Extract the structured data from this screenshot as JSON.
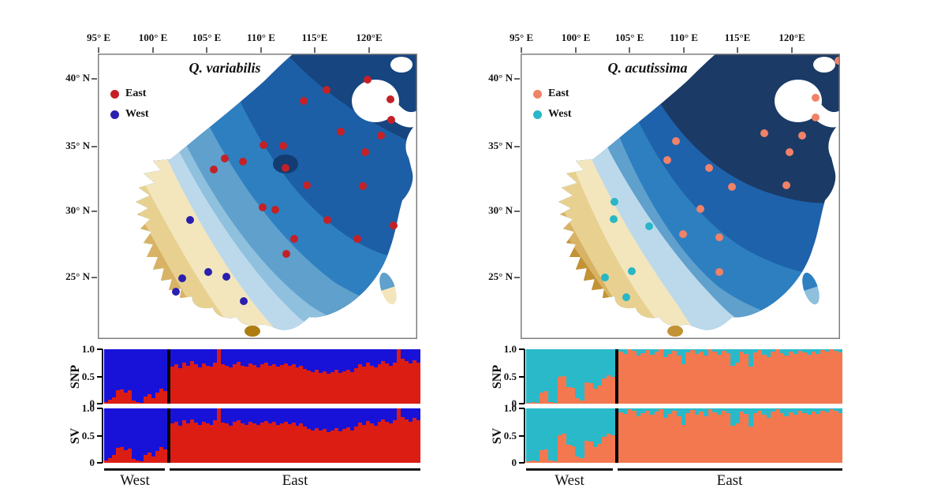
{
  "chart_data": [
    {
      "type": "scatter",
      "title": "Q. variabilis",
      "legend": [
        {
          "label": "East",
          "color": "#c42127"
        },
        {
          "label": "West",
          "color": "#2b1fae"
        }
      ],
      "map": {
        "east_color": "#c42127",
        "west_color": "#2b1fae",
        "frame_color": "#7f7f7f",
        "band_colors": [
          "#16457f",
          "#1c5fa6",
          "#2e7fc0",
          "#5fa0cd",
          "#8fc0de",
          "#bcd9ec",
          "#f3e6bd",
          "#e8d190",
          "#d8b365",
          "#c29234",
          "#ad7d12"
        ],
        "blob_color": "#123c72",
        "x_ticks": [
          {
            "label": "95° E",
            "x": 1
          },
          {
            "label": "100° E",
            "x": 70
          },
          {
            "label": "105° E",
            "x": 138
          },
          {
            "label": "110° E",
            "x": 207
          },
          {
            "label": "115°E",
            "x": 275
          },
          {
            "label": "120°E",
            "x": 344
          }
        ],
        "y_ticks": [
          {
            "label": "40° N",
            "y": 32
          },
          {
            "label": "35° N",
            "y": 118
          },
          {
            "label": "30° N",
            "y": 200
          },
          {
            "label": "25° N",
            "y": 284
          }
        ],
        "east_points": [
          [
            290,
            46
          ],
          [
            261,
            60
          ],
          [
            342,
            33
          ],
          [
            371,
            58
          ],
          [
            372,
            84
          ],
          [
            308,
            99
          ],
          [
            359,
            104
          ],
          [
            210,
            116
          ],
          [
            235,
            117
          ],
          [
            339,
            125
          ],
          [
            161,
            133
          ],
          [
            184,
            137
          ],
          [
            147,
            147
          ],
          [
            238,
            145
          ],
          [
            265,
            167
          ],
          [
            336,
            168
          ],
          [
            209,
            195
          ],
          [
            225,
            198
          ],
          [
            291,
            211
          ],
          [
            375,
            218
          ],
          [
            249,
            235
          ],
          [
            329,
            235
          ],
          [
            239,
            254
          ]
        ],
        "west_points": [
          [
            117,
            211
          ],
          [
            140,
            277
          ],
          [
            163,
            283
          ],
          [
            107,
            285
          ],
          [
            99,
            302
          ],
          [
            185,
            314
          ]
        ]
      },
      "admixture": {
        "type": "bar",
        "colors": {
          "east": "#dc1d14",
          "west": "#1812d9"
        },
        "y_ticks": [
          {
            "label": "1.0",
            "y": 0
          },
          {
            "label": "0.5",
            "y": 34.5
          },
          {
            "label": "0",
            "y": 69
          }
        ],
        "group_labels": [
          "West",
          "East"
        ],
        "rows": [
          {
            "label": "SNP",
            "west": [
              0.03,
              0.07,
              0.12,
              0.24,
              0.26,
              0.21,
              0.24,
              0.06,
              0.03,
              0.02,
              0.13,
              0.17,
              0.1,
              0.2,
              0.27,
              0.23
            ],
            "east": [
              0.68,
              0.72,
              0.65,
              0.75,
              0.7,
              0.78,
              0.72,
              0.66,
              0.74,
              0.7,
              0.68,
              0.76,
              1.0,
              0.72,
              0.7,
              0.66,
              0.73,
              0.77,
              0.7,
              0.68,
              0.74,
              0.71,
              0.67,
              0.72,
              0.75,
              0.7,
              0.73,
              0.68,
              0.71,
              0.74,
              0.69,
              0.72,
              0.66,
              0.7,
              0.64,
              0.61,
              0.58,
              0.62,
              0.57,
              0.6,
              0.55,
              0.58,
              0.62,
              0.56,
              0.6,
              0.63,
              0.58,
              0.65,
              0.72,
              0.68,
              0.75,
              0.7,
              0.66,
              0.73,
              0.78,
              0.74,
              0.7,
              0.76,
              1.0,
              0.82,
              0.78,
              0.74,
              0.8,
              0.76
            ]
          },
          {
            "label": "SV",
            "west": [
              0.05,
              0.09,
              0.14,
              0.27,
              0.29,
              0.23,
              0.26,
              0.07,
              0.04,
              0.03,
              0.15,
              0.19,
              0.12,
              0.22,
              0.29,
              0.25
            ],
            "east": [
              0.72,
              0.75,
              0.68,
              0.78,
              0.73,
              0.8,
              0.74,
              0.69,
              0.76,
              0.72,
              0.7,
              0.78,
              1.0,
              0.74,
              0.72,
              0.68,
              0.75,
              0.79,
              0.72,
              0.7,
              0.76,
              0.73,
              0.69,
              0.74,
              0.77,
              0.72,
              0.75,
              0.7,
              0.73,
              0.76,
              0.71,
              0.74,
              0.68,
              0.72,
              0.66,
              0.63,
              0.6,
              0.64,
              0.59,
              0.62,
              0.57,
              0.6,
              0.64,
              0.58,
              0.62,
              0.65,
              0.6,
              0.67,
              0.74,
              0.7,
              0.77,
              0.72,
              0.68,
              0.75,
              0.8,
              0.76,
              0.72,
              0.78,
              1.0,
              0.84,
              0.8,
              0.76,
              0.82,
              0.78
            ]
          }
        ]
      }
    },
    {
      "type": "scatter",
      "title": "Q. acutissima",
      "legend": [
        {
          "label": "East",
          "color": "#ef8268"
        },
        {
          "label": "West",
          "color": "#28b7c6"
        }
      ],
      "map": {
        "east_color": "#ef8268",
        "west_color": "#28b7c6",
        "frame_color": "#7f7f7f",
        "band_colors": [
          "#1b3a66",
          "#1e62ab",
          "#2e7fc0",
          "#5fa0cd",
          "#8fc0de",
          "#bcd9ec",
          "#f3e6bd",
          "#e8d190",
          "#d8b365",
          "#c29234",
          "#ad7d12"
        ],
        "x_ticks": [
          {
            "label": "95° E",
            "x": 1
          },
          {
            "label": "100° E",
            "x": 70
          },
          {
            "label": "105° E",
            "x": 138
          },
          {
            "label": "110° E",
            "x": 207
          },
          {
            "label": "115°E",
            "x": 275
          },
          {
            "label": "120°E",
            "x": 344
          }
        ],
        "y_ticks": [
          {
            "label": "40° N",
            "y": 32
          },
          {
            "label": "35° N",
            "y": 118
          },
          {
            "label": "30° N",
            "y": 200
          },
          {
            "label": "25° N",
            "y": 284
          }
        ],
        "east_points": [
          [
            403,
            9
          ],
          [
            374,
            56
          ],
          [
            374,
            81
          ],
          [
            309,
            101
          ],
          [
            357,
            104
          ],
          [
            197,
            111
          ],
          [
            186,
            135
          ],
          [
            239,
            145
          ],
          [
            341,
            125
          ],
          [
            268,
            169
          ],
          [
            337,
            167
          ],
          [
            228,
            197
          ],
          [
            206,
            229
          ],
          [
            252,
            233
          ],
          [
            252,
            277
          ]
        ],
        "west_points": [
          [
            119,
            188
          ],
          [
            118,
            210
          ],
          [
            163,
            219
          ],
          [
            141,
            276
          ],
          [
            107,
            284
          ],
          [
            134,
            309
          ]
        ]
      },
      "admixture": {
        "type": "bar",
        "colors": {
          "east": "#f4784f",
          "west": "#29b9c9"
        },
        "y_ticks": [
          {
            "label": "1.0",
            "y": 0
          },
          {
            "label": "0.5",
            "y": 34.5
          },
          {
            "label": "0",
            "y": 69
          }
        ],
        "group_labels": [
          "West",
          "East"
        ],
        "rows": [
          {
            "label": "SNP",
            "west": [
              0.02,
              0.03,
              0.02,
              0.21,
              0.23,
              0.03,
              0.02,
              0.49,
              0.51,
              0.31,
              0.29,
              0.1,
              0.06,
              0.39,
              0.37,
              0.27,
              0.33,
              0.46,
              0.52,
              0.49
            ],
            "east": [
              0.95,
              0.92,
              1.0,
              0.97,
              0.88,
              0.93,
              0.98,
              0.9,
              0.96,
              1.0,
              0.85,
              0.92,
              0.97,
              0.88,
              0.72,
              0.94,
              0.99,
              0.91,
              0.96,
              0.88,
              1.0,
              0.95,
              0.9,
              0.97,
              0.93,
              0.7,
              0.75,
              0.96,
              0.92,
              0.68,
              0.94,
              0.98,
              0.9,
              0.85,
              0.96,
              1.0,
              0.93,
              0.88,
              0.95,
              0.91,
              0.97,
              0.94,
              0.9,
              0.96,
              0.92,
              0.98,
              0.95,
              1.0,
              0.97,
              0.94
            ]
          },
          {
            "label": "SV",
            "west": [
              0.03,
              0.04,
              0.03,
              0.23,
              0.25,
              0.04,
              0.03,
              0.51,
              0.53,
              0.33,
              0.31,
              0.12,
              0.08,
              0.41,
              0.39,
              0.29,
              0.35,
              0.48,
              0.54,
              0.51
            ],
            "east": [
              0.93,
              0.9,
              0.98,
              0.95,
              0.86,
              0.91,
              0.96,
              0.88,
              0.94,
              0.98,
              0.83,
              0.9,
              0.95,
              0.86,
              0.7,
              0.92,
              0.97,
              0.89,
              0.94,
              0.86,
              0.98,
              0.93,
              0.88,
              0.95,
              0.91,
              0.68,
              0.73,
              0.94,
              0.9,
              0.66,
              0.92,
              0.96,
              0.88,
              0.83,
              0.94,
              0.98,
              0.91,
              0.86,
              0.93,
              0.89,
              0.95,
              0.92,
              0.88,
              0.94,
              0.9,
              0.96,
              0.93,
              0.98,
              0.95,
              0.92
            ]
          }
        ]
      }
    }
  ]
}
